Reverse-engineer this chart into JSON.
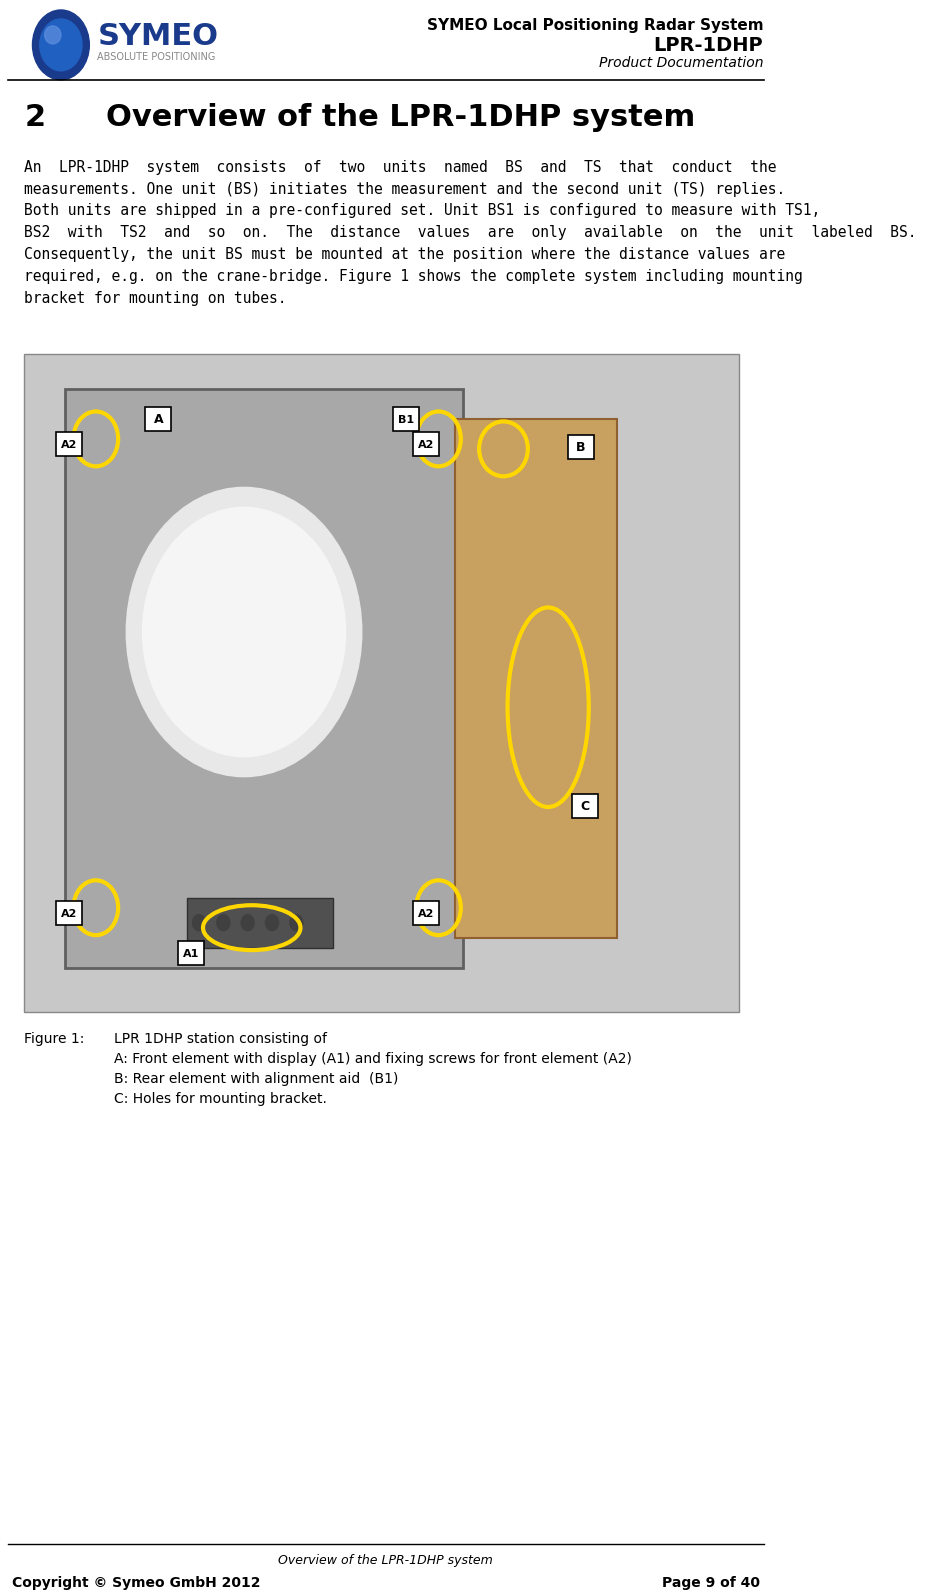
{
  "header_line1": "SYMEO Local Positioning Radar System",
  "header_line2": "LPR-1DHP",
  "header_line3": "Product Documentation",
  "section_number": "2",
  "section_title": "Overview of the LPR-1DHP system",
  "body_text": "An  LPR-1DHP  system  consists  of  two  units  named  BS  and  TS  that  conduct  the\nmeasurements. One unit (BS) initiates the measurement and the second unit (TS) replies.\nBoth units are shipped in a pre-configured set. Unit BS1 is configured to measure with TS1,\nBS2  with  TS2  and  so  on.  The  distance  values  are  only  available  on  the  unit  labeled  BS.\nConsequently, the unit BS must be mounted at the position where the distance values are\nrequired, e.g. on the crane-bridge. Figure 1 shows the complete system including mounting\nbracket for mounting on tubes.",
  "figure_caption_title": "Figure 1:",
  "figure_caption_text": "LPR 1DHP station consisting of\nA: Front element with display (A1) and fixing screws for front element (A2)\nB: Rear element with alignment aid  (B1)\nC: Holes for mounting bracket.",
  "footer_center": "Overview of the LPR-1DHP system",
  "footer_left": "Copyright © Symeo GmbH 2012",
  "footer_right": "Page 9 of 40",
  "bg_color": "#ffffff",
  "text_color": "#000000",
  "header_separator_color": "#000000",
  "footer_separator_color": "#000000",
  "image_placeholder_color": "#d0d0d0",
  "logo_circle_color": "#1a3a8c",
  "logo_text_color": "#1a3a8c",
  "symeo_blue": "#1a3a8c"
}
